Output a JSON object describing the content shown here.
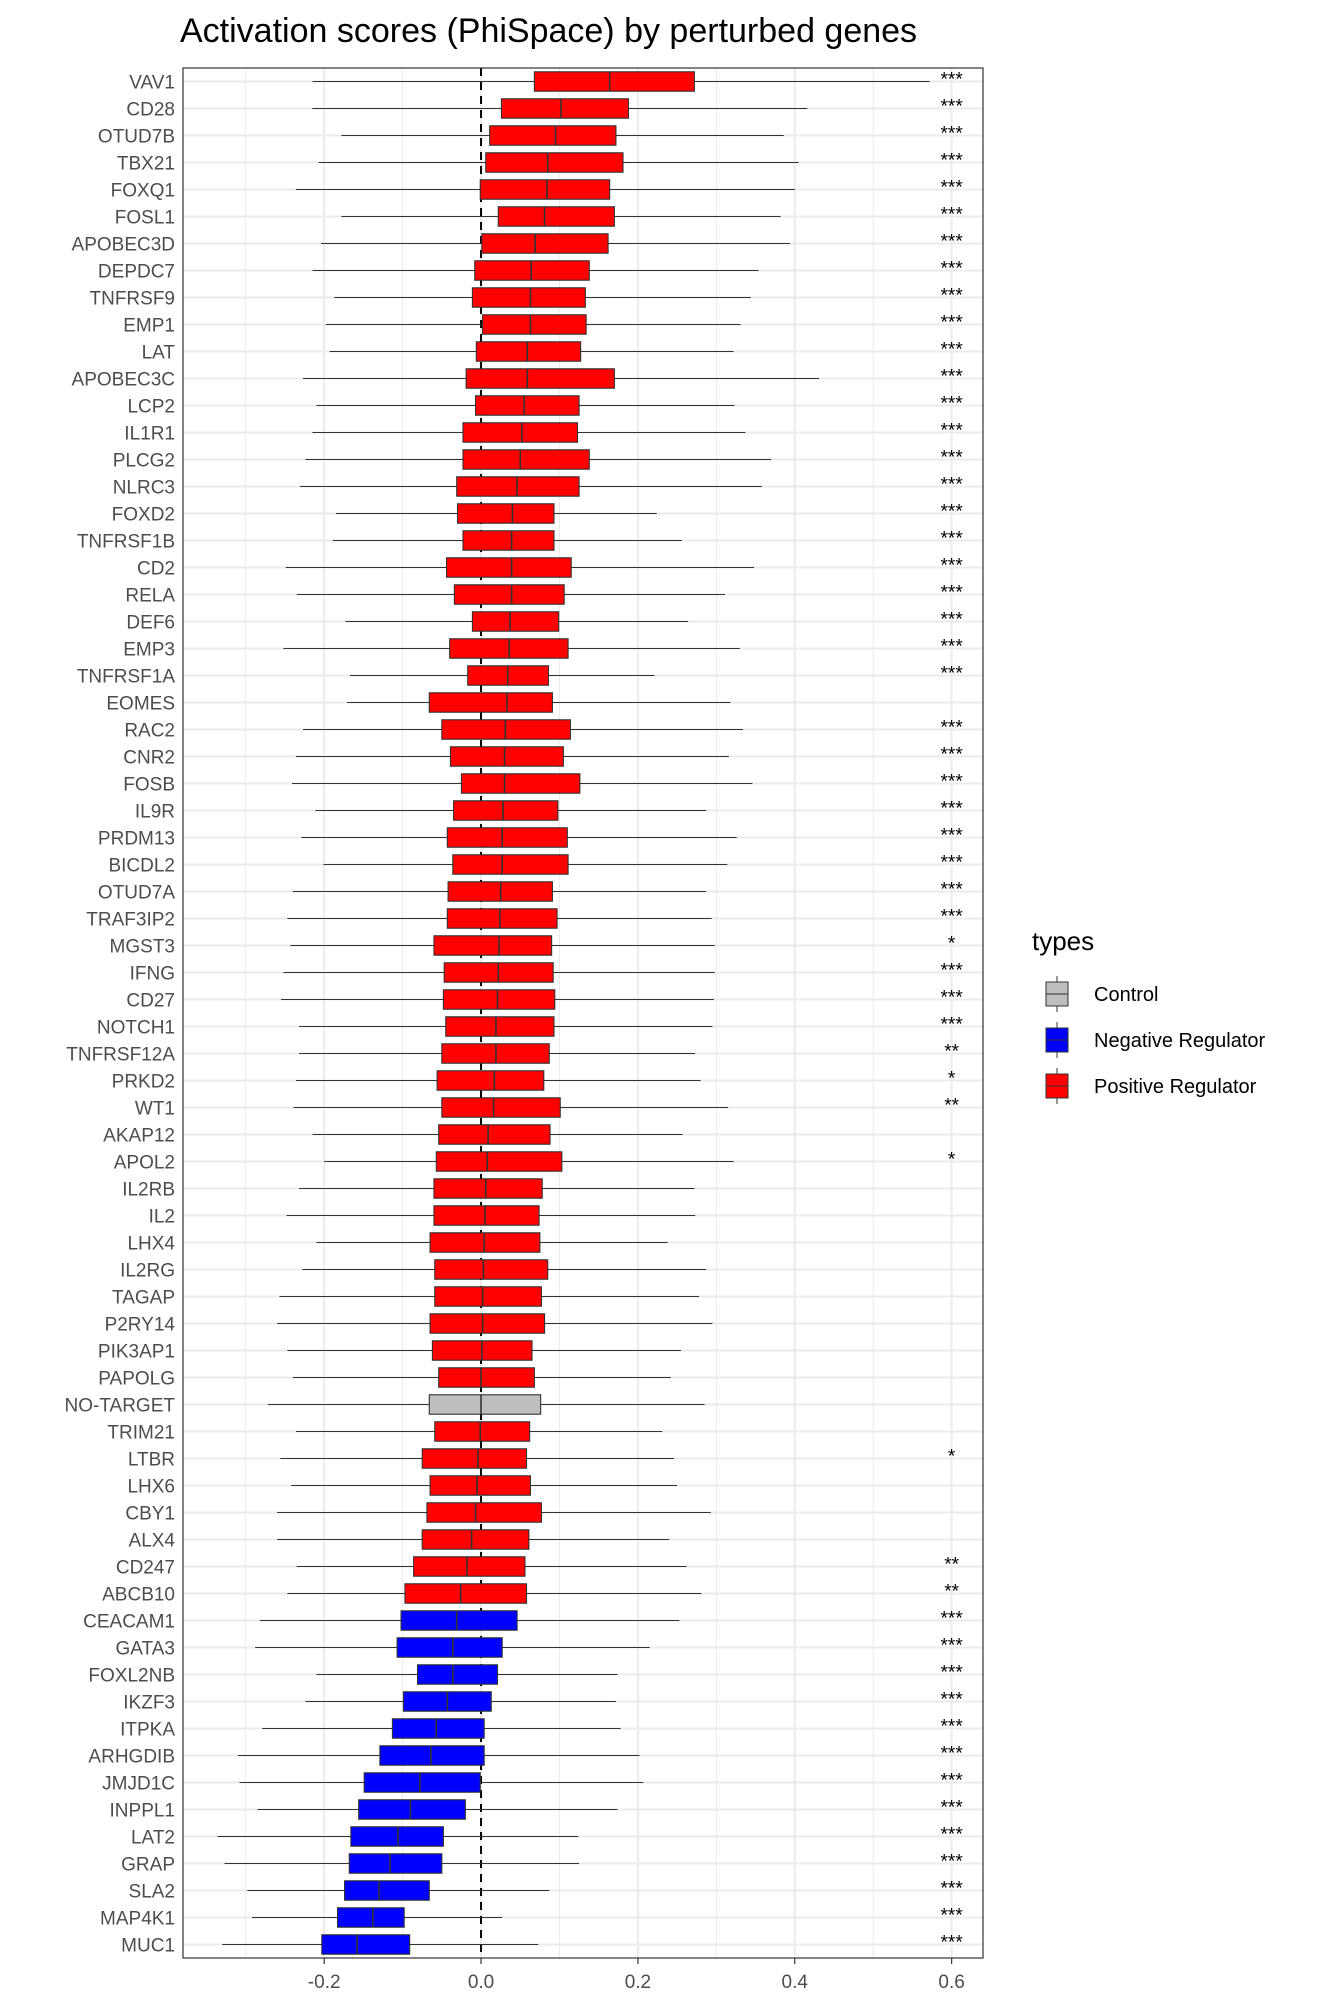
{
  "chart_data": {
    "type": "boxplot",
    "orientation": "horizontal",
    "title": "Activation scores (PhiSpace) by perturbed genes",
    "xlabel": "",
    "ylabel": "",
    "xlim": [
      -0.38,
      0.64
    ],
    "x_ticks": [
      -0.2,
      0.0,
      0.2,
      0.4,
      0.6
    ],
    "x_tick_labels": [
      "-0.2",
      "0.0",
      "0.2",
      "0.4",
      "0.6"
    ],
    "reference_line": 0.0,
    "grid": true,
    "legend": {
      "title": "types",
      "position": "right",
      "entries": [
        {
          "label": "Control",
          "color": "#bebebe"
        },
        {
          "label": "Negative Regulator",
          "color": "#0000ff"
        },
        {
          "label": "Positive Regulator",
          "color": "#ff0000"
        }
      ]
    },
    "colors": {
      "Control": "#bebebe",
      "Negative Regulator": "#0000ff",
      "Positive Regulator": "#ff0000"
    },
    "significance_x": 0.6,
    "boxes": [
      {
        "gene": "VAV1",
        "type": "Positive Regulator",
        "wmin": -0.215,
        "q1": 0.068,
        "median": 0.164,
        "q3": 0.272,
        "wmax": 0.572,
        "sig": "***"
      },
      {
        "gene": "CD28",
        "type": "Positive Regulator",
        "wmin": -0.215,
        "q1": 0.026,
        "median": 0.102,
        "q3": 0.188,
        "wmax": 0.416,
        "sig": "***"
      },
      {
        "gene": "OTUD7B",
        "type": "Positive Regulator",
        "wmin": -0.178,
        "q1": 0.011,
        "median": 0.095,
        "q3": 0.172,
        "wmax": 0.386,
        "sig": "***"
      },
      {
        "gene": "TBX21",
        "type": "Positive Regulator",
        "wmin": -0.207,
        "q1": 0.006,
        "median": 0.085,
        "q3": 0.181,
        "wmax": 0.405,
        "sig": "***"
      },
      {
        "gene": "FOXQ1",
        "type": "Positive Regulator",
        "wmin": -0.236,
        "q1": -0.001,
        "median": 0.084,
        "q3": 0.164,
        "wmax": 0.4,
        "sig": "***"
      },
      {
        "gene": "FOSL1",
        "type": "Positive Regulator",
        "wmin": -0.178,
        "q1": 0.022,
        "median": 0.081,
        "q3": 0.17,
        "wmax": 0.382,
        "sig": "***"
      },
      {
        "gene": "APOBEC3D",
        "type": "Positive Regulator",
        "wmin": -0.204,
        "q1": 0.001,
        "median": 0.069,
        "q3": 0.162,
        "wmax": 0.394,
        "sig": "***"
      },
      {
        "gene": "DEPDC7",
        "type": "Positive Regulator",
        "wmin": -0.215,
        "q1": -0.008,
        "median": 0.064,
        "q3": 0.138,
        "wmax": 0.354,
        "sig": "***"
      },
      {
        "gene": "TNFRSF9",
        "type": "Positive Regulator",
        "wmin": -0.187,
        "q1": -0.011,
        "median": 0.063,
        "q3": 0.133,
        "wmax": 0.344,
        "sig": "***"
      },
      {
        "gene": "EMP1",
        "type": "Positive Regulator",
        "wmin": -0.198,
        "q1": 0.002,
        "median": 0.063,
        "q3": 0.134,
        "wmax": 0.331,
        "sig": "***"
      },
      {
        "gene": "LAT",
        "type": "Positive Regulator",
        "wmin": -0.193,
        "q1": -0.006,
        "median": 0.059,
        "q3": 0.127,
        "wmax": 0.322,
        "sig": "***"
      },
      {
        "gene": "APOBEC3C",
        "type": "Positive Regulator",
        "wmin": -0.227,
        "q1": -0.019,
        "median": 0.059,
        "q3": 0.17,
        "wmax": 0.431,
        "sig": "***"
      },
      {
        "gene": "LCP2",
        "type": "Positive Regulator",
        "wmin": -0.21,
        "q1": -0.007,
        "median": 0.055,
        "q3": 0.125,
        "wmax": 0.323,
        "sig": "***"
      },
      {
        "gene": "IL1R1",
        "type": "Positive Regulator",
        "wmin": -0.215,
        "q1": -0.023,
        "median": 0.052,
        "q3": 0.123,
        "wmax": 0.337,
        "sig": "***"
      },
      {
        "gene": "PLCG2",
        "type": "Positive Regulator",
        "wmin": -0.224,
        "q1": -0.023,
        "median": 0.05,
        "q3": 0.138,
        "wmax": 0.37,
        "sig": "***"
      },
      {
        "gene": "NLRC3",
        "type": "Positive Regulator",
        "wmin": -0.231,
        "q1": -0.031,
        "median": 0.046,
        "q3": 0.125,
        "wmax": 0.358,
        "sig": "***"
      },
      {
        "gene": "FOXD2",
        "type": "Positive Regulator",
        "wmin": -0.185,
        "q1": -0.03,
        "median": 0.04,
        "q3": 0.093,
        "wmax": 0.224,
        "sig": "***"
      },
      {
        "gene": "TNFRSF1B",
        "type": "Positive Regulator",
        "wmin": -0.189,
        "q1": -0.023,
        "median": 0.039,
        "q3": 0.093,
        "wmax": 0.256,
        "sig": "***"
      },
      {
        "gene": "CD2",
        "type": "Positive Regulator",
        "wmin": -0.249,
        "q1": -0.044,
        "median": 0.039,
        "q3": 0.115,
        "wmax": 0.348,
        "sig": "***"
      },
      {
        "gene": "RELA",
        "type": "Positive Regulator",
        "wmin": -0.235,
        "q1": -0.034,
        "median": 0.039,
        "q3": 0.106,
        "wmax": 0.311,
        "sig": "***"
      },
      {
        "gene": "DEF6",
        "type": "Positive Regulator",
        "wmin": -0.173,
        "q1": -0.011,
        "median": 0.037,
        "q3": 0.099,
        "wmax": 0.264,
        "sig": "***"
      },
      {
        "gene": "EMP3",
        "type": "Positive Regulator",
        "wmin": -0.252,
        "q1": -0.04,
        "median": 0.036,
        "q3": 0.111,
        "wmax": 0.33,
        "sig": "***"
      },
      {
        "gene": "TNFRSF1A",
        "type": "Positive Regulator",
        "wmin": -0.167,
        "q1": -0.017,
        "median": 0.034,
        "q3": 0.086,
        "wmax": 0.221,
        "sig": "***"
      },
      {
        "gene": "EOMES",
        "type": "Positive Regulator",
        "wmin": -0.171,
        "q1": -0.066,
        "median": 0.033,
        "q3": 0.091,
        "wmax": 0.318,
        "sig": ""
      },
      {
        "gene": "RAC2",
        "type": "Positive Regulator",
        "wmin": -0.227,
        "q1": -0.05,
        "median": 0.031,
        "q3": 0.114,
        "wmax": 0.334,
        "sig": "***"
      },
      {
        "gene": "CNR2",
        "type": "Positive Regulator",
        "wmin": -0.236,
        "q1": -0.039,
        "median": 0.03,
        "q3": 0.105,
        "wmax": 0.316,
        "sig": "***"
      },
      {
        "gene": "FOSB",
        "type": "Positive Regulator",
        "wmin": -0.241,
        "q1": -0.025,
        "median": 0.03,
        "q3": 0.126,
        "wmax": 0.346,
        "sig": "***"
      },
      {
        "gene": "IL9R",
        "type": "Positive Regulator",
        "wmin": -0.211,
        "q1": -0.035,
        "median": 0.028,
        "q3": 0.098,
        "wmax": 0.287,
        "sig": "***"
      },
      {
        "gene": "PRDM13",
        "type": "Positive Regulator",
        "wmin": -0.229,
        "q1": -0.043,
        "median": 0.027,
        "q3": 0.11,
        "wmax": 0.326,
        "sig": "***"
      },
      {
        "gene": "BICDL2",
        "type": "Positive Regulator",
        "wmin": -0.201,
        "q1": -0.036,
        "median": 0.027,
        "q3": 0.111,
        "wmax": 0.314,
        "sig": "***"
      },
      {
        "gene": "OTUD7A",
        "type": "Positive Regulator",
        "wmin": -0.24,
        "q1": -0.042,
        "median": 0.025,
        "q3": 0.091,
        "wmax": 0.287,
        "sig": "***"
      },
      {
        "gene": "TRAF3IP2",
        "type": "Positive Regulator",
        "wmin": -0.247,
        "q1": -0.043,
        "median": 0.024,
        "q3": 0.097,
        "wmax": 0.294,
        "sig": "***"
      },
      {
        "gene": "MGST3",
        "type": "Positive Regulator",
        "wmin": -0.243,
        "q1": -0.06,
        "median": 0.023,
        "q3": 0.09,
        "wmax": 0.298,
        "sig": "*"
      },
      {
        "gene": "IFNG",
        "type": "Positive Regulator",
        "wmin": -0.252,
        "q1": -0.047,
        "median": 0.022,
        "q3": 0.092,
        "wmax": 0.298,
        "sig": "***"
      },
      {
        "gene": "CD27",
        "type": "Positive Regulator",
        "wmin": -0.255,
        "q1": -0.048,
        "median": 0.021,
        "q3": 0.094,
        "wmax": 0.297,
        "sig": "***"
      },
      {
        "gene": "NOTCH1",
        "type": "Positive Regulator",
        "wmin": -0.232,
        "q1": -0.045,
        "median": 0.019,
        "q3": 0.093,
        "wmax": 0.295,
        "sig": "***"
      },
      {
        "gene": "TNFRSF12A",
        "type": "Positive Regulator",
        "wmin": -0.232,
        "q1": -0.05,
        "median": 0.019,
        "q3": 0.087,
        "wmax": 0.273,
        "sig": "**"
      },
      {
        "gene": "PRKD2",
        "type": "Positive Regulator",
        "wmin": -0.236,
        "q1": -0.056,
        "median": 0.017,
        "q3": 0.08,
        "wmax": 0.28,
        "sig": "*"
      },
      {
        "gene": "WT1",
        "type": "Positive Regulator",
        "wmin": -0.239,
        "q1": -0.05,
        "median": 0.016,
        "q3": 0.101,
        "wmax": 0.315,
        "sig": "**"
      },
      {
        "gene": "AKAP12",
        "type": "Positive Regulator",
        "wmin": -0.215,
        "q1": -0.054,
        "median": 0.009,
        "q3": 0.088,
        "wmax": 0.257,
        "sig": ""
      },
      {
        "gene": "APOL2",
        "type": "Positive Regulator",
        "wmin": -0.2,
        "q1": -0.057,
        "median": 0.008,
        "q3": 0.103,
        "wmax": 0.322,
        "sig": "*"
      },
      {
        "gene": "IL2RB",
        "type": "Positive Regulator",
        "wmin": -0.232,
        "q1": -0.06,
        "median": 0.006,
        "q3": 0.078,
        "wmax": 0.272,
        "sig": ""
      },
      {
        "gene": "IL2",
        "type": "Positive Regulator",
        "wmin": -0.248,
        "q1": -0.06,
        "median": 0.005,
        "q3": 0.074,
        "wmax": 0.273,
        "sig": ""
      },
      {
        "gene": "LHX4",
        "type": "Positive Regulator",
        "wmin": -0.21,
        "q1": -0.065,
        "median": 0.004,
        "q3": 0.075,
        "wmax": 0.238,
        "sig": ""
      },
      {
        "gene": "IL2RG",
        "type": "Positive Regulator",
        "wmin": -0.228,
        "q1": -0.059,
        "median": 0.003,
        "q3": 0.085,
        "wmax": 0.287,
        "sig": ""
      },
      {
        "gene": "TAGAP",
        "type": "Positive Regulator",
        "wmin": -0.257,
        "q1": -0.059,
        "median": 0.002,
        "q3": 0.077,
        "wmax": 0.278,
        "sig": ""
      },
      {
        "gene": "P2RY14",
        "type": "Positive Regulator",
        "wmin": -0.26,
        "q1": -0.065,
        "median": 0.002,
        "q3": 0.081,
        "wmax": 0.295,
        "sig": ""
      },
      {
        "gene": "PIK3AP1",
        "type": "Positive Regulator",
        "wmin": -0.247,
        "q1": -0.062,
        "median": 0.001,
        "q3": 0.065,
        "wmax": 0.255,
        "sig": ""
      },
      {
        "gene": "PAPOLG",
        "type": "Positive Regulator",
        "wmin": -0.24,
        "q1": -0.054,
        "median": 0.0,
        "q3": 0.068,
        "wmax": 0.242,
        "sig": ""
      },
      {
        "gene": "NO-TARGET",
        "type": "Control",
        "wmin": -0.272,
        "q1": -0.066,
        "median": 0.0,
        "q3": 0.076,
        "wmax": 0.285,
        "sig": ""
      },
      {
        "gene": "TRIM21",
        "type": "Positive Regulator",
        "wmin": -0.236,
        "q1": -0.059,
        "median": -0.001,
        "q3": 0.062,
        "wmax": 0.231,
        "sig": ""
      },
      {
        "gene": "LTBR",
        "type": "Positive Regulator",
        "wmin": -0.256,
        "q1": -0.075,
        "median": -0.004,
        "q3": 0.058,
        "wmax": 0.246,
        "sig": "*"
      },
      {
        "gene": "LHX6",
        "type": "Positive Regulator",
        "wmin": -0.242,
        "q1": -0.065,
        "median": -0.005,
        "q3": 0.063,
        "wmax": 0.25,
        "sig": ""
      },
      {
        "gene": "CBY1",
        "type": "Positive Regulator",
        "wmin": -0.26,
        "q1": -0.069,
        "median": -0.007,
        "q3": 0.077,
        "wmax": 0.293,
        "sig": ""
      },
      {
        "gene": "ALX4",
        "type": "Positive Regulator",
        "wmin": -0.26,
        "q1": -0.075,
        "median": -0.012,
        "q3": 0.061,
        "wmax": 0.24,
        "sig": ""
      },
      {
        "gene": "CD247",
        "type": "Positive Regulator",
        "wmin": -0.235,
        "q1": -0.086,
        "median": -0.018,
        "q3": 0.056,
        "wmax": 0.262,
        "sig": "**"
      },
      {
        "gene": "ABCB10",
        "type": "Positive Regulator",
        "wmin": -0.247,
        "q1": -0.097,
        "median": -0.026,
        "q3": 0.058,
        "wmax": 0.281,
        "sig": "**"
      },
      {
        "gene": "CEACAM1",
        "type": "Negative Regulator",
        "wmin": -0.282,
        "q1": -0.102,
        "median": -0.031,
        "q3": 0.046,
        "wmax": 0.253,
        "sig": "***"
      },
      {
        "gene": "GATA3",
        "type": "Negative Regulator",
        "wmin": -0.288,
        "q1": -0.107,
        "median": -0.036,
        "q3": 0.027,
        "wmax": 0.215,
        "sig": "***"
      },
      {
        "gene": "FOXL2NB",
        "type": "Negative Regulator",
        "wmin": -0.21,
        "q1": -0.081,
        "median": -0.036,
        "q3": 0.021,
        "wmax": 0.174,
        "sig": "***"
      },
      {
        "gene": "IKZF3",
        "type": "Negative Regulator",
        "wmin": -0.224,
        "q1": -0.099,
        "median": -0.043,
        "q3": 0.013,
        "wmax": 0.172,
        "sig": "***"
      },
      {
        "gene": "ITPKA",
        "type": "Negative Regulator",
        "wmin": -0.279,
        "q1": -0.113,
        "median": -0.057,
        "q3": 0.004,
        "wmax": 0.178,
        "sig": "***"
      },
      {
        "gene": "ARHGDIB",
        "type": "Negative Regulator",
        "wmin": -0.31,
        "q1": -0.129,
        "median": -0.064,
        "q3": 0.004,
        "wmax": 0.202,
        "sig": "***"
      },
      {
        "gene": "JMJD1C",
        "type": "Negative Regulator",
        "wmin": -0.308,
        "q1": -0.149,
        "median": -0.078,
        "q3": -0.001,
        "wmax": 0.207,
        "sig": "***"
      },
      {
        "gene": "INPPL1",
        "type": "Negative Regulator",
        "wmin": -0.285,
        "q1": -0.156,
        "median": -0.09,
        "q3": -0.02,
        "wmax": 0.174,
        "sig": "***"
      },
      {
        "gene": "LAT2",
        "type": "Negative Regulator",
        "wmin": -0.336,
        "q1": -0.166,
        "median": -0.106,
        "q3": -0.048,
        "wmax": 0.124,
        "sig": "***"
      },
      {
        "gene": "GRAP",
        "type": "Negative Regulator",
        "wmin": -0.327,
        "q1": -0.168,
        "median": -0.116,
        "q3": -0.05,
        "wmax": 0.125,
        "sig": "***"
      },
      {
        "gene": "SLA2",
        "type": "Negative Regulator",
        "wmin": -0.298,
        "q1": -0.174,
        "median": -0.13,
        "q3": -0.066,
        "wmax": 0.087,
        "sig": "***"
      },
      {
        "gene": "MAP4K1",
        "type": "Negative Regulator",
        "wmin": -0.292,
        "q1": -0.183,
        "median": -0.138,
        "q3": -0.098,
        "wmax": 0.027,
        "sig": "***"
      },
      {
        "gene": "MUC1",
        "type": "Negative Regulator",
        "wmin": -0.33,
        "q1": -0.203,
        "median": -0.158,
        "q3": -0.091,
        "wmax": 0.073,
        "sig": "***"
      }
    ]
  }
}
